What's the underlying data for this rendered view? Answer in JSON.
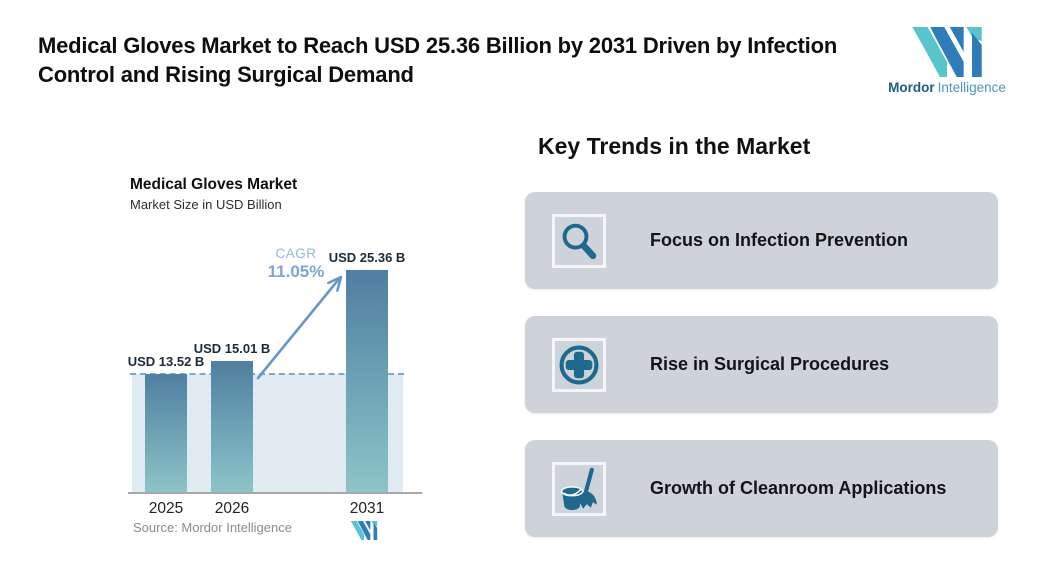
{
  "header": {
    "title": "Medical Gloves Market to Reach USD 25.36 Billion by 2031 Driven by Infection Control and Rising Surgical Demand",
    "brand": {
      "name_bold": "Mordor",
      "name_light": "Intelligence"
    }
  },
  "chart_data": {
    "type": "bar",
    "title": "Medical Gloves Market",
    "subtitle": "Market Size in USD Billion",
    "categories": [
      "2025",
      "2026",
      "2031"
    ],
    "values": [
      13.52,
      15.01,
      25.36
    ],
    "bar_value_labels": [
      "USD 13.52 B",
      "USD 15.01 B",
      "USD 25.36 B"
    ],
    "annotation": {
      "label": "CAGR",
      "value": "11.05%"
    },
    "reference_line_value": 13.52,
    "ylim": [
      0,
      28
    ],
    "xlabel": "",
    "ylabel": "Market Size in USD Billion",
    "grid": false,
    "legend": "none",
    "source": "Source: Mordor Intelligence"
  },
  "trends": {
    "heading": "Key Trends in the Market",
    "items": [
      {
        "icon": "magnifier-icon",
        "label": "Focus on Infection Prevention"
      },
      {
        "icon": "medical-cross-icon",
        "label": "Rise in Surgical Procedures"
      },
      {
        "icon": "cleaning-broom-bucket-icon",
        "label": "Growth of Cleanroom Applications"
      }
    ]
  },
  "colors": {
    "icon_teal": "#1d6a8e",
    "card_background": "#cdd3d9",
    "brand_blue": "#2e7cb8",
    "brand_teal": "#58c5cd",
    "bar_gradient_top": "#4f7fa1",
    "bar_gradient_bottom": "#8cc5c8",
    "dashed_line": "#7aaacd",
    "cagr_text": "#7ba6d1",
    "plot_region": "#e0eaf1"
  }
}
